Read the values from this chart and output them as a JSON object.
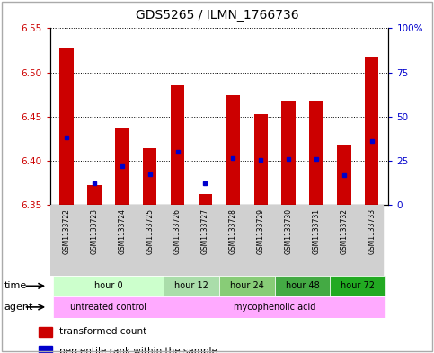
{
  "title": "GDS5265 / ILMN_1766736",
  "samples": [
    "GSM1133722",
    "GSM1133723",
    "GSM1133724",
    "GSM1133725",
    "GSM1133726",
    "GSM1133727",
    "GSM1133728",
    "GSM1133729",
    "GSM1133730",
    "GSM1133731",
    "GSM1133732",
    "GSM1133733"
  ],
  "bar_tops": [
    6.528,
    6.372,
    6.437,
    6.414,
    6.485,
    6.362,
    6.474,
    6.453,
    6.467,
    6.467,
    6.418,
    6.518
  ],
  "bar_bottom": 6.35,
  "blue_dot_values": [
    6.426,
    6.374,
    6.394,
    6.385,
    6.41,
    6.374,
    6.403,
    6.401,
    6.402,
    6.402,
    6.384,
    6.422
  ],
  "ylim_left": [
    6.35,
    6.55
  ],
  "ylim_right": [
    0,
    100
  ],
  "yticks_left": [
    6.35,
    6.4,
    6.45,
    6.5,
    6.55
  ],
  "yticks_right": [
    0,
    25,
    50,
    75,
    100
  ],
  "ytick_labels_right": [
    "0",
    "25",
    "50",
    "75",
    "100%"
  ],
  "bar_color": "#cc0000",
  "dot_color": "#0000cc",
  "bar_width": 0.5,
  "plot_bg": "#ffffff",
  "tick_label_color_left": "#cc0000",
  "tick_label_color_right": "#0000cc",
  "time_group_defs": [
    {
      "label": "hour 0",
      "start": 0,
      "end": 3,
      "color": "#ccffcc"
    },
    {
      "label": "hour 12",
      "start": 4,
      "end": 5,
      "color": "#aaddaa"
    },
    {
      "label": "hour 24",
      "start": 6,
      "end": 7,
      "color": "#88cc77"
    },
    {
      "label": "hour 48",
      "start": 8,
      "end": 9,
      "color": "#44aa44"
    },
    {
      "label": "hour 72",
      "start": 10,
      "end": 11,
      "color": "#22aa22"
    }
  ],
  "agent_group_defs": [
    {
      "label": "untreated control",
      "start": 0,
      "end": 3,
      "color": "#ffaaff"
    },
    {
      "label": "mycophenolic acid",
      "start": 4,
      "end": 11,
      "color": "#ffaaff"
    }
  ]
}
